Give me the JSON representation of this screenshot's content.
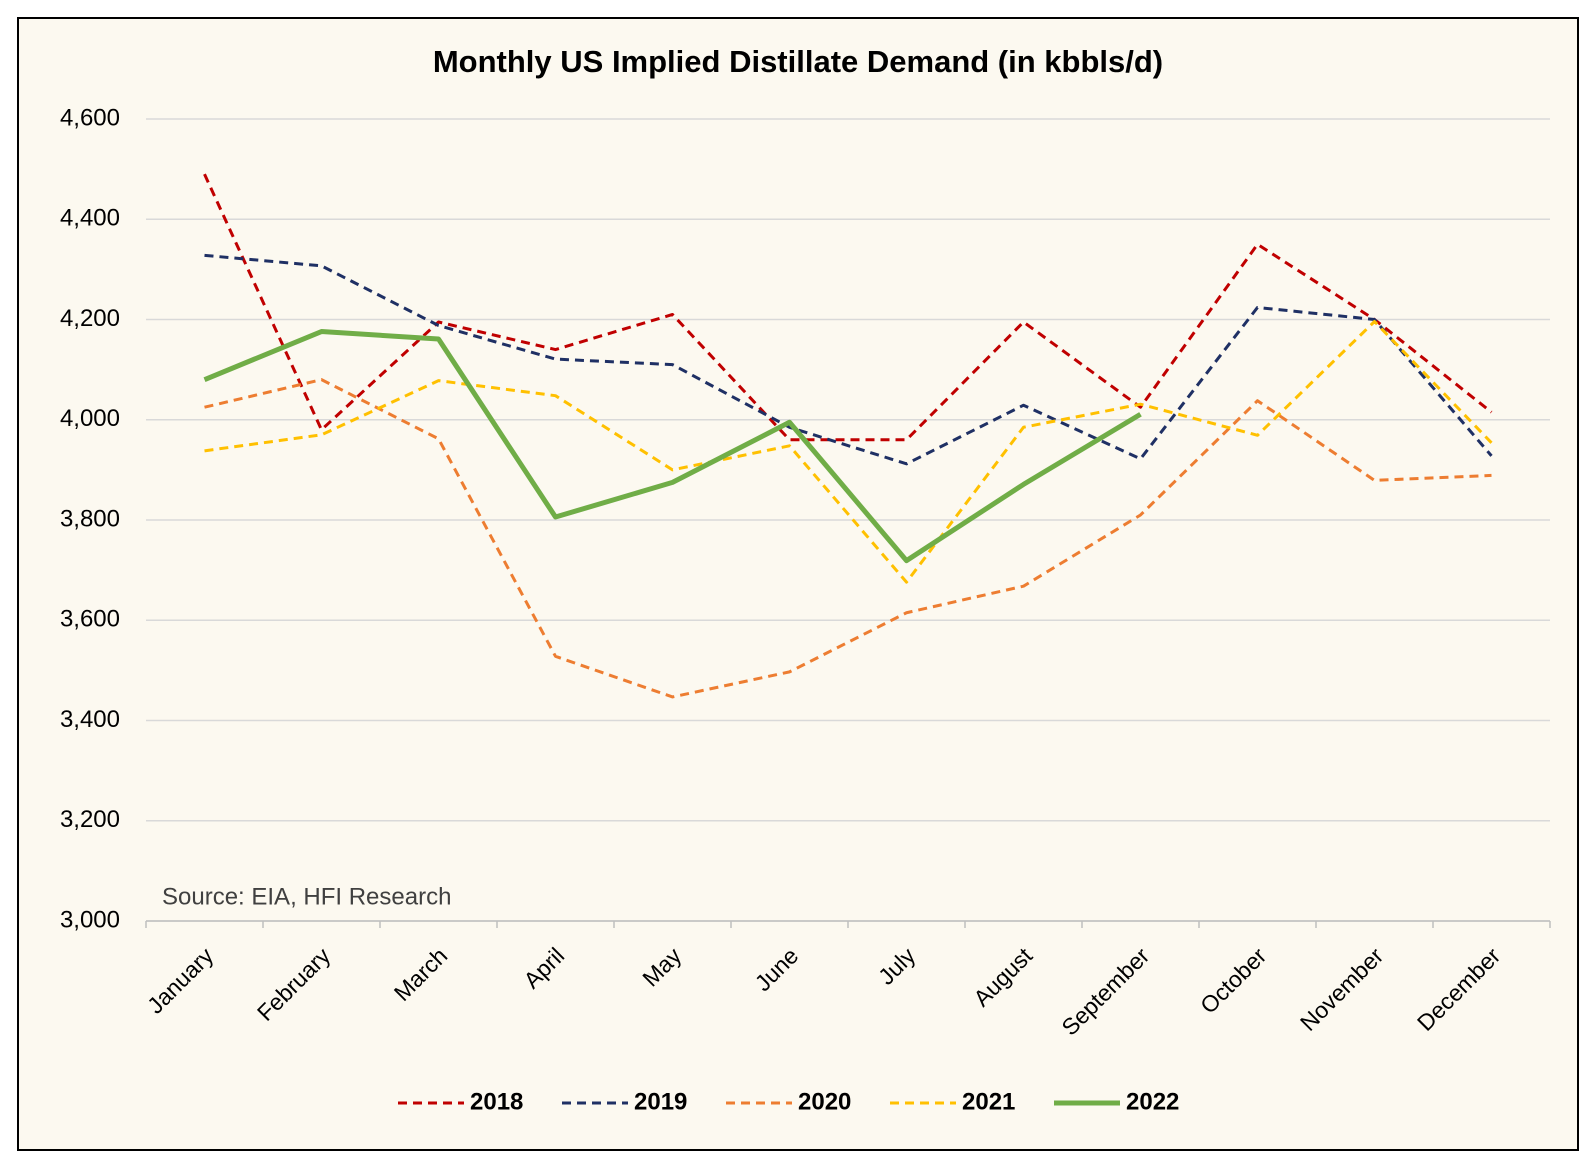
{
  "chart_data": {
    "type": "line",
    "title": "Monthly US Implied Distillate Demand (in kbbls/d)",
    "annotation": "Source: EIA, HFI Research",
    "categories": [
      "January",
      "February",
      "March",
      "April",
      "May",
      "June",
      "July",
      "August",
      "September",
      "October",
      "November",
      "December"
    ],
    "series": [
      {
        "name": "2018",
        "color": "#c00000",
        "dashed": true,
        "values": [
          4490,
          3980,
          4195,
          4140,
          4210,
          3960,
          3960,
          4195,
          4025,
          4350,
          4200,
          4015
        ]
      },
      {
        "name": "2019",
        "color": "#1f3064",
        "dashed": true,
        "values": [
          4328,
          4307,
          4188,
          4121,
          4110,
          3985,
          3912,
          4029,
          3922,
          4224,
          4200,
          3928
        ]
      },
      {
        "name": "2020",
        "color": "#ed7d31",
        "dashed": true,
        "values": [
          4025,
          4080,
          3962,
          3528,
          3447,
          3497,
          3615,
          3668,
          3810,
          4038,
          3879,
          3889
        ]
      },
      {
        "name": "2021",
        "color": "#ffc000",
        "dashed": true,
        "values": [
          3938,
          3970,
          4078,
          4048,
          3900,
          3948,
          3676,
          3985,
          4031,
          3969,
          4196,
          3954
        ]
      },
      {
        "name": "2022",
        "color": "#70ad47",
        "dashed": false,
        "values": [
          4080,
          4176,
          4161,
          3806,
          3875,
          3995,
          3719,
          3871,
          4011,
          null,
          null,
          null
        ]
      }
    ],
    "ylim": [
      3000,
      4600
    ],
    "yticks": [
      {
        "value": 3000,
        "label": "3,000"
      },
      {
        "value": 3200,
        "label": "3,200"
      },
      {
        "value": 3400,
        "label": "3,400"
      },
      {
        "value": 3600,
        "label": "3,600"
      },
      {
        "value": 3800,
        "label": "3,800"
      },
      {
        "value": 4000,
        "label": "4,000"
      },
      {
        "value": 4200,
        "label": "4,200"
      },
      {
        "value": 4400,
        "label": "4,400"
      },
      {
        "value": 4600,
        "label": "4,600"
      }
    ],
    "grid": true,
    "legend": "bottom"
  }
}
